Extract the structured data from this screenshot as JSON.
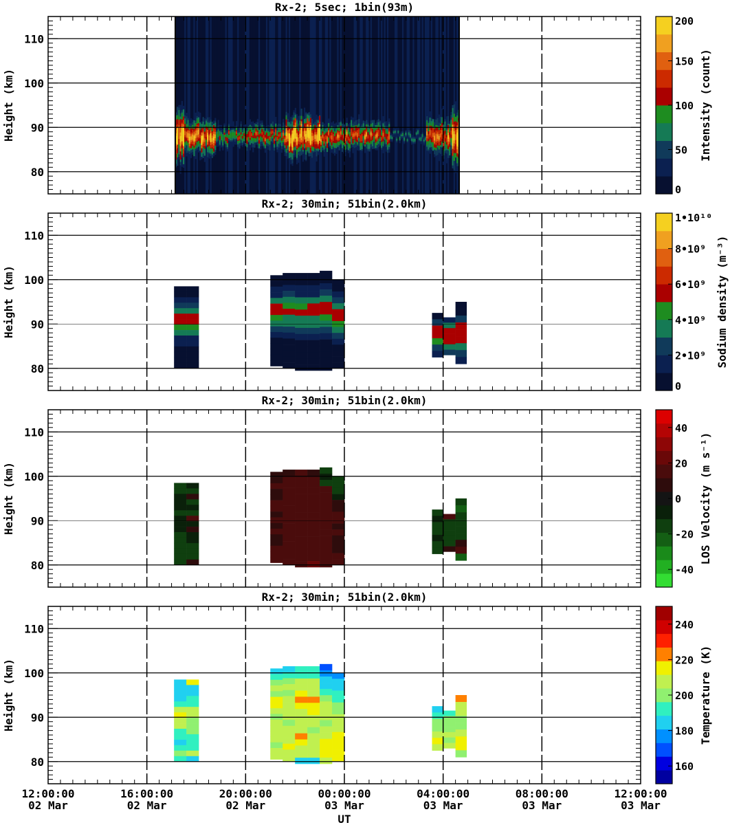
{
  "figure": {
    "x_axis_label": "UT",
    "x_ticks": [
      {
        "time": "12:00:00",
        "date": "02 Mar",
        "hours": 0
      },
      {
        "time": "16:00:00",
        "date": "02 Mar",
        "hours": 4
      },
      {
        "time": "20:00:00",
        "date": "02 Mar",
        "hours": 8
      },
      {
        "time": "00:00:00",
        "date": "03 Mar",
        "hours": 12
      },
      {
        "time": "04:00:00",
        "date": "03 Mar",
        "hours": 16
      },
      {
        "time": "08:00:00",
        "date": "03 Mar",
        "hours": 20
      },
      {
        "time": "12:00:00",
        "date": "03 Mar",
        "hours": 24
      }
    ],
    "xlim_hours": [
      0,
      24
    ],
    "x_hours_origin": "2 Mar 12:00:00 UT",
    "ylim_km": [
      75,
      115
    ],
    "y_ticks": [
      80,
      90,
      100,
      110
    ],
    "y_label": "Height (km)"
  },
  "chart_data": [
    {
      "type": "heatmap",
      "title": "Rx-2;  5sec; 1bin(93m)",
      "ylabel": "Height (km)",
      "colorbar": {
        "label": "Intensity (count)",
        "range": [
          0,
          200
        ],
        "ticks": [
          "0",
          "50",
          "100",
          "150",
          "200"
        ],
        "tick_values": [
          0,
          50,
          100,
          150,
          200
        ],
        "colors": [
          "#071030",
          "#0b2050",
          "#103a5a",
          "#157a55",
          "#1e8c20",
          "#aa0000",
          "#cc2a00",
          "#e06010",
          "#f0a020",
          "#f5d020"
        ]
      },
      "data_extent_hours": [
        5.15,
        16.65
      ],
      "layer_center_km": 88,
      "blocks": [
        {
          "start": 5.15,
          "end": 5.5,
          "top": 97,
          "bottom": 83,
          "peak": 185
        },
        {
          "start": 5.5,
          "end": 6.8,
          "top": 93,
          "bottom": 84,
          "peak": 150
        },
        {
          "start": 6.8,
          "end": 8.0,
          "top": 91,
          "bottom": 86,
          "peak": 70
        },
        {
          "start": 8.0,
          "end": 9.6,
          "top": 91,
          "bottom": 85,
          "peak": 90
        },
        {
          "start": 9.6,
          "end": 11.0,
          "top": 93,
          "bottom": 83,
          "peak": 190
        },
        {
          "start": 11.0,
          "end": 13.8,
          "top": 92,
          "bottom": 85,
          "peak": 110
        },
        {
          "start": 13.8,
          "end": 15.3,
          "top": 89,
          "bottom": 87,
          "peak": 25
        },
        {
          "start": 15.3,
          "end": 16.3,
          "top": 93,
          "bottom": 84,
          "peak": 130
        },
        {
          "start": 16.3,
          "end": 16.65,
          "top": 97,
          "bottom": 83,
          "peak": 190
        }
      ]
    },
    {
      "type": "heatmap",
      "title": "Rx-2; 30min; 51bin(2.0km)",
      "ylabel": "Height (km)",
      "colorbar": {
        "label": "Sodium density (m⁻³)",
        "range": [
          0,
          10000000000
        ],
        "ticks": [
          "0",
          "2•10⁹",
          "4•10⁹",
          "6•10⁹",
          "8•10⁹",
          "1•10¹⁰"
        ],
        "tick_values": [
          0,
          2000000000,
          4000000000,
          6000000000,
          8000000000,
          10000000000
        ],
        "colors": [
          "#071030",
          "#0b2050",
          "#103a5a",
          "#157a55",
          "#1e8c20",
          "#aa0000",
          "#cc2a00",
          "#e06010",
          "#f0a020",
          "#f5d020"
        ]
      },
      "columns": [
        {
          "start": 5.1,
          "end": 5.6,
          "top": 98.5,
          "bottom": 80,
          "cells": [
            0.3,
            0.4,
            1.2,
            2.0,
            3.4,
            5.6,
            5.8,
            4.0,
            3.0,
            1.8,
            1.0,
            0.5,
            0.3,
            0.2,
            0.1
          ]
        },
        {
          "start": 5.6,
          "end": 6.1,
          "top": 98.5,
          "bottom": 80,
          "cells": [
            0.3,
            0.5,
            1.3,
            2.2,
            3.6,
            5.6,
            5.8,
            4.1,
            3.0,
            1.8,
            1.0,
            0.5,
            0.3,
            0.2,
            0.1
          ]
        },
        {
          "start": 9.0,
          "end": 9.5,
          "top": 101,
          "bottom": 80.5,
          "cells": [
            0.3,
            0.5,
            1.1,
            1.8,
            3.2,
            5.4,
            5.7,
            4.2,
            3.2,
            2.0,
            1.2,
            0.6,
            0.4,
            0.3,
            0.2,
            0.1
          ]
        },
        {
          "start": 9.5,
          "end": 10.0,
          "top": 101.5,
          "bottom": 80,
          "cells": [
            0.3,
            0.5,
            1.2,
            2.0,
            3.4,
            4.6,
            5.6,
            3.6,
            3.0,
            2.0,
            1.2,
            0.6,
            0.4,
            0.3,
            0.2,
            0.1
          ]
        },
        {
          "start": 10.0,
          "end": 10.5,
          "top": 101.5,
          "bottom": 79.5,
          "cells": [
            0.3,
            0.5,
            1.1,
            1.9,
            3.6,
            4.4,
            5.5,
            3.6,
            3.2,
            2.1,
            1.2,
            0.6,
            0.4,
            0.3,
            0.2,
            0.1
          ]
        },
        {
          "start": 10.5,
          "end": 11.0,
          "top": 101.5,
          "bottom": 79.5,
          "cells": [
            0.3,
            0.5,
            1.2,
            1.9,
            3.4,
            5.4,
            5.7,
            3.6,
            3.0,
            2.0,
            1.2,
            0.6,
            0.4,
            0.3,
            0.2,
            0.1
          ]
        },
        {
          "start": 11.0,
          "end": 11.5,
          "top": 102,
          "bottom": 79.5,
          "cells": [
            0.3,
            0.5,
            1.1,
            2.0,
            3.6,
            5.5,
            5.7,
            4.0,
            3.2,
            2.0,
            1.2,
            0.6,
            0.4,
            0.3,
            0.2,
            0.1
          ]
        },
        {
          "start": 11.5,
          "end": 12.0,
          "top": 100,
          "bottom": 80,
          "cells": [
            0.3,
            0.5,
            1.2,
            2.0,
            3.4,
            5.6,
            5.8,
            4.2,
            3.1,
            2.0,
            1.2,
            0.6,
            0.4,
            0.3,
            0.2
          ]
        },
        {
          "start": 12.0,
          "end": 12.0,
          "top": 97.5,
          "bottom": 80.5,
          "cells": []
        },
        {
          "start": 15.55,
          "end": 16.0,
          "top": 92.5,
          "bottom": 82.5,
          "cells": [
            0.8,
            2.4,
            5.6,
            5.8,
            4.6,
            2.8,
            1.0
          ]
        },
        {
          "start": 16.0,
          "end": 16.5,
          "top": 91.5,
          "bottom": 83,
          "cells": [
            1.0,
            3.0,
            5.6,
            5.6,
            5.4,
            3.6,
            2.0
          ]
        },
        {
          "start": 16.5,
          "end": 16.95,
          "top": 95,
          "bottom": 81,
          "cells": [
            0.3,
            0.6,
            2.6,
            5.6,
            5.8,
            5.6,
            3.4,
            2.0,
            1.0
          ]
        }
      ],
      "cell_units": "×10⁹ m⁻³"
    },
    {
      "type": "heatmap",
      "title": "Rx-2; 30min; 51bin(2.0km)",
      "ylabel": "Height (km)",
      "colorbar": {
        "label": "LOS Velocity (m s⁻¹)",
        "range": [
          -50,
          50
        ],
        "ticks": [
          "-40",
          "-20",
          "0",
          "20",
          "40"
        ],
        "tick_values": [
          -40,
          -20,
          0,
          20,
          40
        ],
        "colors": [
          "#33dd33",
          "#22b022",
          "#1a8a1a",
          "#145f14",
          "#0f3f0f",
          "#0a200a",
          "#141414",
          "#2e0c0c",
          "#4a0c0c",
          "#6a0808",
          "#8e0606",
          "#b40404",
          "#dc0000"
        ]
      },
      "columns": [
        {
          "start": 5.1,
          "end": 5.6,
          "top": 98.5,
          "bottom": 80,
          "cells": [
            -15,
            -12,
            -10,
            -8,
            -10,
            -12,
            -10,
            -8,
            -10,
            -12,
            -12,
            -14,
            -12,
            -12,
            -12
          ]
        },
        {
          "start": 5.6,
          "end": 6.1,
          "top": 98.5,
          "bottom": 80,
          "cells": [
            -10,
            -12,
            8,
            -12,
            -10,
            -12,
            12,
            -10,
            10,
            -8,
            -10,
            -12,
            -12,
            -14,
            8
          ]
        },
        {
          "start": 9.0,
          "end": 9.5,
          "top": 101,
          "bottom": 80.5,
          "cells": [
            8,
            10,
            12,
            10,
            10,
            12,
            12,
            10,
            12,
            10,
            12,
            10,
            10,
            12,
            14,
            16
          ]
        },
        {
          "start": 9.5,
          "end": 10.0,
          "top": 101.5,
          "bottom": 80,
          "cells": [
            10,
            12,
            14,
            16,
            16,
            14,
            14,
            12,
            12,
            14,
            14,
            12,
            12,
            14,
            16,
            18
          ]
        },
        {
          "start": 10.0,
          "end": 10.5,
          "top": 101.5,
          "bottom": 79.5,
          "cells": [
            14,
            16,
            16,
            18,
            18,
            16,
            14,
            14,
            16,
            16,
            14,
            14,
            12,
            12,
            14,
            18
          ]
        },
        {
          "start": 10.5,
          "end": 11.0,
          "top": 101.5,
          "bottom": 79.5,
          "cells": [
            10,
            14,
            16,
            18,
            16,
            16,
            14,
            14,
            12,
            14,
            14,
            12,
            12,
            14,
            16,
            20
          ]
        },
        {
          "start": 11.0,
          "end": 11.5,
          "top": 102,
          "bottom": 79.5,
          "cells": [
            -12,
            -10,
            -14,
            12,
            14,
            16,
            14,
            12,
            14,
            14,
            12,
            12,
            14,
            14,
            16,
            18
          ]
        },
        {
          "start": 11.5,
          "end": 12.0,
          "top": 100,
          "bottom": 80,
          "cells": [
            -16,
            -14,
            -12,
            -10,
            8,
            10,
            12,
            12,
            10,
            12,
            10,
            8,
            10,
            12,
            14
          ]
        },
        {
          "start": 15.55,
          "end": 16.0,
          "top": 92.5,
          "bottom": 82.5,
          "cells": [
            -12,
            -10,
            -14,
            -12,
            -10,
            -12,
            -12
          ]
        },
        {
          "start": 16.0,
          "end": 16.5,
          "top": 91.5,
          "bottom": 83,
          "cells": [
            12,
            -12,
            -14,
            -16,
            -14,
            -12,
            10
          ]
        },
        {
          "start": 16.5,
          "end": 16.95,
          "top": 95,
          "bottom": 81,
          "cells": [
            -18,
            -20,
            -16,
            -14,
            -14,
            -12,
            10,
            12,
            -24
          ]
        }
      ]
    },
    {
      "type": "heatmap",
      "title": "Rx-2; 30min; 51bin(2.0km)",
      "ylabel": "Height (km)",
      "colorbar": {
        "label": "Temperature (K)",
        "range": [
          150,
          250
        ],
        "ticks": [
          "160",
          "180",
          "200",
          "220",
          "240"
        ],
        "tick_values": [
          160,
          180,
          200,
          220,
          240
        ],
        "colors": [
          "#0000a0",
          "#0000e0",
          "#0050ff",
          "#0090ff",
          "#20d0f0",
          "#30f0c0",
          "#90f070",
          "#c0f050",
          "#f0f000",
          "#ff8000",
          "#ff2000",
          "#d00000",
          "#a00000"
        ]
      },
      "columns": [
        {
          "start": 5.1,
          "end": 5.6,
          "top": 98.5,
          "bottom": 80,
          "cells": [
            186,
            184,
            186,
            188,
            196,
            204,
            214,
            210,
            204,
            196,
            192,
            186,
            194,
            198,
            196
          ]
        },
        {
          "start": 5.6,
          "end": 6.1,
          "top": 98.5,
          "bottom": 80,
          "cells": [
            216,
            186,
            186,
            196,
            196,
            204,
            206,
            202,
            200,
            198,
            196,
            192,
            196,
            204,
            186
          ]
        },
        {
          "start": 9.0,
          "end": 9.5,
          "top": 101,
          "bottom": 80.5,
          "cells": [
            188,
            196,
            200,
            204,
            200,
            216,
            214,
            204,
            200,
            210,
            206,
            208,
            204,
            202,
            204,
            206
          ]
        },
        {
          "start": 9.5,
          "end": 10.0,
          "top": 101.5,
          "bottom": 80,
          "cells": [
            188,
            196,
            198,
            204,
            200,
            206,
            204,
            206,
            204,
            200,
            206,
            208,
            204,
            214,
            204,
            204
          ]
        },
        {
          "start": 10.0,
          "end": 10.5,
          "top": 101.5,
          "bottom": 79.5,
          "cells": [
            190,
            196,
            204,
            204,
            214,
            226,
            214,
            210,
            204,
            206,
            204,
            220,
            216,
            206,
            204,
            182
          ]
        },
        {
          "start": 10.5,
          "end": 11.0,
          "top": 101.5,
          "bottom": 79.5,
          "cells": [
            194,
            196,
            204,
            204,
            206,
            226,
            212,
            216,
            208,
            206,
            202,
            210,
            206,
            208,
            204,
            186
          ]
        },
        {
          "start": 11.0,
          "end": 11.5,
          "top": 102,
          "bottom": 79.5,
          "cells": [
            168,
            176,
            184,
            188,
            196,
            200,
            204,
            206,
            204,
            202,
            206,
            210,
            214,
            214,
            214,
            206
          ]
        },
        {
          "start": 11.5,
          "end": 12.0,
          "top": 100,
          "bottom": 80,
          "cells": [
            176,
            184,
            188,
            192,
            196,
            200,
            202,
            204,
            204,
            206,
            214,
            214,
            216,
            216,
            214
          ]
        },
        {
          "start": 15.55,
          "end": 16.0,
          "top": 92.5,
          "bottom": 82.5,
          "cells": [
            186,
            192,
            198,
            200,
            206,
            214,
            210
          ]
        },
        {
          "start": 16.0,
          "end": 16.5,
          "top": 91.5,
          "bottom": 83,
          "cells": [
            194,
            198,
            200,
            198,
            204,
            200,
            206
          ]
        },
        {
          "start": 16.5,
          "end": 16.95,
          "top": 95,
          "bottom": 81,
          "cells": [
            226,
            210,
            204,
            202,
            200,
            204,
            214,
            214,
            198
          ]
        }
      ]
    }
  ]
}
